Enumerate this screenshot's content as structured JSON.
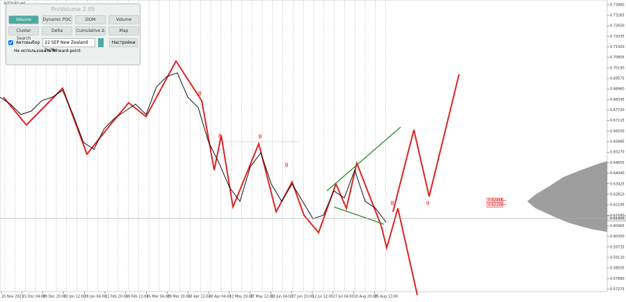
{
  "window_title": "NZDUSD,H4",
  "panel": {
    "title": "ProVolume 2.05",
    "buttons": [
      "Volume Profile",
      "Dynamic POC",
      "DOM",
      "Volume",
      "Cluster Search",
      "Delta",
      "Cumulative Δ",
      "Map"
    ],
    "auto_label": "Автовыбор",
    "symbol": "22 SEP New Zealand Dollar",
    "settings": "Настройки",
    "note": "Не использовать forward-point"
  },
  "chart_data": {
    "type": "line",
    "x_labels": [
      "20 Nov 2021",
      "15 Dec 04:00",
      "29 Dec 20:00",
      "13 Jan 12:00",
      "28 Jan 04:00",
      "11 Feb 20:00",
      "28 Feb 12:00",
      "15 Mar 04:00",
      "29 Mar 20:00",
      "13 Apr 12:00",
      "28 Apr 04:00",
      "12 May 20:00",
      "27 May 12:00",
      "13 Jun 04:00",
      "27 Jun 20:00",
      "12 Jul 12:00",
      "27 Jul 04:00",
      "10 Aug 20:00",
      "25 Aug 12:00"
    ],
    "price": [
      0.68483,
      0.68077,
      0.67469,
      0.67672,
      0.6828,
      0.68483,
      0.68888,
      0.67469,
      0.65847,
      0.65441,
      0.66658,
      0.67266,
      0.67672,
      0.68077,
      0.67469,
      0.69091,
      0.69699,
      0.69902,
      0.68483,
      0.67874,
      0.65847,
      0.6463,
      0.63211,
      0.624,
      0.64428,
      0.65239,
      0.63414,
      0.624,
      0.63414,
      0.624,
      0.61386,
      0.61589,
      0.63008,
      0.62603,
      0.64225,
      0.624,
      0.61995,
      0.61184
    ],
    "ylim": [
      0.5713,
      0.7416
    ],
    "yticks": [
      {
        "value": 0.7388,
        "label": "0.73880"
      },
      {
        "value": 0.73265,
        "label": "0.73265"
      },
      {
        "value": 0.7265,
        "label": "0.72650"
      },
      {
        "value": 0.72035,
        "label": "0.72035"
      },
      {
        "value": 0.7142,
        "label": "0.71420"
      },
      {
        "value": 0.70805,
        "label": "0.70805"
      },
      {
        "value": 0.7019,
        "label": "0.70190"
      },
      {
        "value": 0.69575,
        "label": "0.69575"
      },
      {
        "value": 0.6896,
        "label": "0.68960"
      },
      {
        "value": 0.68345,
        "label": "0.68345"
      },
      {
        "value": 0.6773,
        "label": "0.67730"
      },
      {
        "value": 0.67115,
        "label": "0.67115"
      },
      {
        "value": 0.665,
        "label": "0.66500"
      },
      {
        "value": 0.65885,
        "label": "0.65885"
      },
      {
        "value": 0.6527,
        "label": "0.65270"
      },
      {
        "value": 0.64655,
        "label": "0.64655"
      },
      {
        "value": 0.6404,
        "label": "0.64040"
      },
      {
        "value": 0.63425,
        "label": "0.63425"
      },
      {
        "value": 0.6281,
        "label": "0.62810"
      },
      {
        "value": 0.62195,
        "label": "0.62195"
      },
      {
        "value": 0.6158,
        "label": "0.61580"
      },
      {
        "value": 0.60965,
        "label": "0.60965"
      },
      {
        "value": 0.6035,
        "label": "0.60350"
      },
      {
        "value": 0.59735,
        "label": "0.59735"
      },
      {
        "value": 0.5912,
        "label": "0.59120"
      },
      {
        "value": 0.58505,
        "label": "0.58505"
      },
      {
        "value": 0.5789,
        "label": "0.57890"
      },
      {
        "value": 0.57275,
        "label": "0.57275"
      }
    ],
    "current_price": {
      "value": 0.61405,
      "label": "0.61405"
    },
    "levels": [
      {
        "value": 0.62458,
        "label": "0.62458"
      },
      {
        "value": 0.62208,
        "label": "0.62208"
      }
    ],
    "wave_labels": [
      "8",
      "8",
      "8",
      "8",
      "8",
      "9"
    ]
  }
}
